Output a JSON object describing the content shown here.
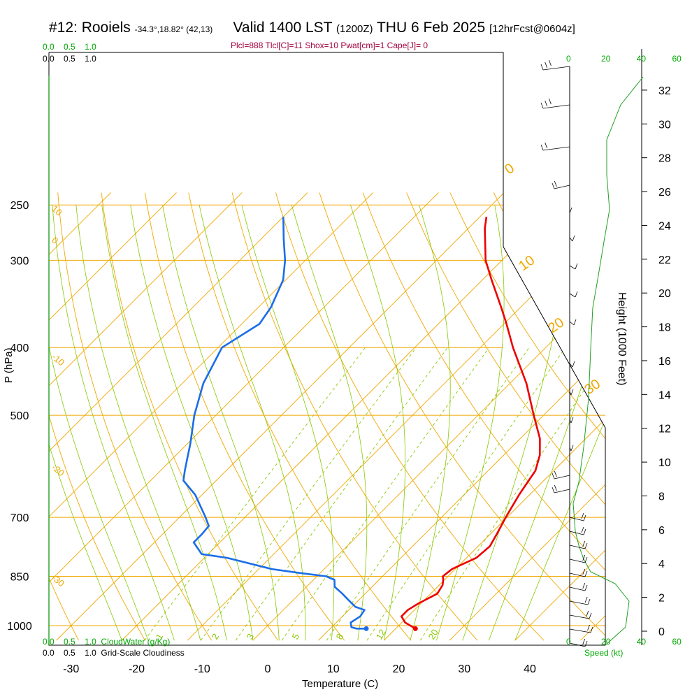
{
  "title": {
    "station": "#12: Rooiels",
    "coords": "-34.3°,18.82° (42,13)",
    "valid": "Valid 1400 LST",
    "utc": "(1200Z)",
    "date": "THU 6 Feb 2025",
    "forecast": "[12hrFcst@0604z]"
  },
  "params_line": "Plcl=888 Tlcl[C]=11 Shox=10 Pwat[cm]=1 Cape[J]= 0",
  "axis_labels": {
    "pressure": "P (hPa)",
    "temperature": "Temperature (C)",
    "height": "Height (1000 Feet)",
    "speed": "Speed (kt)"
  },
  "top_scales": {
    "cloudwater_ticks": [
      "0.0",
      "0.5",
      "1.0"
    ],
    "cloudiness_ticks": [
      "0.0",
      "0.5",
      "1.0"
    ],
    "speed_ticks": [
      "0",
      "20",
      "40",
      "60"
    ]
  },
  "bottom_scales": {
    "cloudwater_ticks": [
      "0.0",
      "0.5",
      "1.0"
    ],
    "cloudwater_label": "CloudWater (g/Kg)",
    "cloudiness_ticks": [
      "0.0",
      "0.5",
      "1.0"
    ],
    "cloudiness_label": "Grid-Scale Cloudiness",
    "speed_ticks": [
      "0",
      "20",
      "40",
      "60"
    ]
  },
  "colors": {
    "temperature": "#ee0000",
    "dewpoint": "#1a6ee8",
    "isotherm": "#f0a800",
    "dry_adiabat": "#f0a800",
    "moist_adiabat": "#88c800",
    "mixing_ratio": "#88c800",
    "wind_speed": "#22a022",
    "params": "#a0003c"
  },
  "chart_data": {
    "type": "line",
    "diagram": "skew-T log-P",
    "pressure_ticks": [
      250,
      300,
      400,
      500,
      700,
      850,
      1000
    ],
    "temperature_ticks": [
      -30,
      -20,
      -10,
      0,
      10,
      20,
      30,
      40
    ],
    "height_ticks_kft": [
      0,
      2,
      4,
      6,
      8,
      10,
      12,
      14,
      16,
      18,
      20,
      22,
      24,
      26,
      28,
      30,
      32
    ],
    "plim_hpa": [
      250,
      1050
    ],
    "xlim_c_at_bottom": [
      -34,
      46
    ],
    "dry_adiabat_labels": [
      "10",
      "0",
      "-10",
      "-20",
      "-30"
    ],
    "moist_adiabat_labels": [
      "0",
      "10",
      "20",
      "30"
    ],
    "mixing_ratio_labels": [
      "1",
      "2",
      "3",
      "5",
      "8",
      "12",
      "20"
    ],
    "series": [
      {
        "name": "temperature",
        "p": [
          1010,
          990,
          970,
          950,
          930,
          900,
          875,
          860,
          850,
          830,
          800,
          770,
          740,
          700,
          650,
          600,
          570,
          540,
          500,
          450,
          400,
          370,
          350,
          320,
          300,
          270,
          260
        ],
        "t": [
          23,
          20.5,
          19,
          19,
          19.6,
          21,
          20.5,
          19.8,
          19.2,
          19.5,
          21.5,
          21.8,
          21,
          19.8,
          18.4,
          17.2,
          15.5,
          13,
          8.5,
          2.5,
          -5,
          -9.6,
          -13,
          -18.6,
          -22.5,
          -27.5,
          -29
        ]
      },
      {
        "name": "dewpoint",
        "p": [
          1010,
          1010,
          1005,
          990,
          970,
          950,
          940,
          920,
          900,
          880,
          860,
          850,
          840,
          830,
          800,
          790,
          760,
          740,
          720,
          700,
          650,
          620,
          600,
          570,
          550,
          500,
          450,
          400,
          370,
          350,
          320,
          300,
          280,
          260
        ],
        "t": [
          15.5,
          14,
          13,
          12.2,
          12.7,
          12.4,
          10.5,
          8.5,
          6.5,
          4.3,
          3.2,
          1.4,
          -3.5,
          -8,
          -16.5,
          -21,
          -24,
          -24,
          -24.2,
          -26,
          -31,
          -35,
          -36.3,
          -38.2,
          -39.5,
          -43.3,
          -46.8,
          -49.4,
          -47.3,
          -48.1,
          -50.4,
          -53.1,
          -56.5,
          -60
        ]
      }
    ]
  }
}
